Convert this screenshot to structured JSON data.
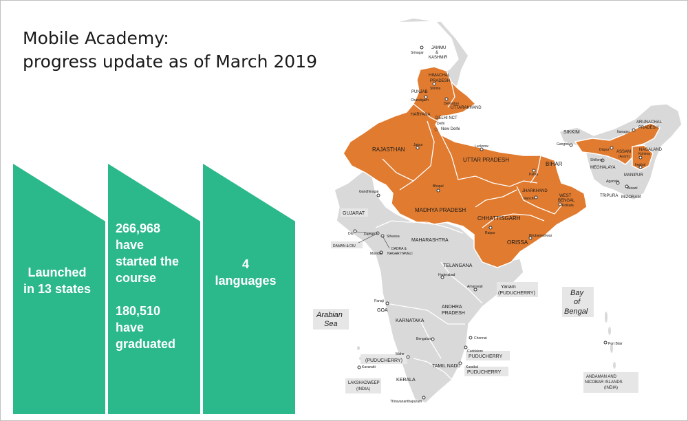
{
  "title": {
    "line1": "Mobile Academy:",
    "line2": "progress update as of March 2019"
  },
  "panels": {
    "launched_line1": "Launched",
    "launched_line2": "in 13 states",
    "started_count": "266,968",
    "started_line2": "have",
    "started_line3": "started the",
    "started_line4": "course",
    "graduated_count": "180,510",
    "graduated_line2": "have",
    "graduated_line3": "graduated",
    "languages_count": "4",
    "languages_label": "languages"
  },
  "colors": {
    "chevron": "#2bb88b",
    "launched_state": "#e07b30",
    "other_state": "#d9d9d9"
  },
  "map": {
    "states_launched": {
      "himachal_line1": "HIMACHAL",
      "himachal_line2": "PRADESH",
      "uttarakhand": "UTTARAKHAND",
      "delhi": "DELHI NCT",
      "rajasthan": "RAJASTHAN",
      "uttar_pradesh": "UTTAR PRADESH",
      "bihar": "BIHAR",
      "jharkhand": "JHARKHAND",
      "west_bengal_line1": "WEST",
      "west_bengal_line2": "BENGAL",
      "madhya_pradesh": "MADHYA PRADESH",
      "chhattisgarh": "CHHATTISGARH",
      "orissa": "ORISSA",
      "assam": "ASSAM"
    },
    "states_other": {
      "jammu_line1": "JAMMU",
      "jammu_line2": "&",
      "jammu_line3": "KASHMIR",
      "punjab": "PUNJAB",
      "haryana": "HARYANA",
      "gujarat": "GUJARAT",
      "maharashtra": "MAHARASHTRA",
      "telangana": "TELANGANA",
      "andhra_line1": "ANDHRA",
      "andhra_line2": "PRADESH",
      "karnataka": "KARNATAKA",
      "goa": "GOA",
      "kerala": "KERALA",
      "tamil_nadu": "TAMIL NADU",
      "sikkim": "SIKKIM",
      "arunachal_line1": "ARUNACHAL",
      "arunachal_line2": "PRADESH",
      "nagaland": "NAGALAND",
      "meghalaya": "MEGHALAYA",
      "manipur": "MANIPUR",
      "tripura": "TRIPURA",
      "mizoram": "MIZORAM",
      "daman_diu": "DAMAN & DIU",
      "dadra_line1": "DADRA &",
      "dadra_line2": "NAGAR HAVELI",
      "lakshadweep_line1": "LAKSHADWEEP",
      "lakshadweep_line2": "(INDIA)",
      "andaman_line1": "ANDAMAN AND",
      "andaman_line2": "NICOBAR ISLANDS",
      "andaman_line3": "(INDIA)",
      "yanam_line1": "Yanam",
      "yanam_line2": "(PUDUCHERRY)",
      "puducherry_mahe": "(PUDUCHERRY)",
      "puducherry_cuddalore": "PUDUCHERRY",
      "puducherry_karaikal": "PUDUCHERRY"
    },
    "water": {
      "arabian_line1": "Arabian",
      "arabian_line2": "Sea",
      "bay_line1": "Bay",
      "bay_line2": "of",
      "bay_line3": "Bengal"
    },
    "cities": {
      "srinagar": "Srinagar",
      "shimla": "Shimla",
      "chandigarh": "Chandigarh",
      "dehradun": "Dehradun",
      "new_delhi": "New Delhi",
      "delhi": "Delhi",
      "jaipur": "Jaipur",
      "lucknow": "Lucknow",
      "patna": "Patna",
      "ranchi": "Ranchi",
      "kolkata": "Kolkata",
      "bhopal": "Bhopal",
      "raipur": "Raipur",
      "bhubaneshwar": "Bhubaneshwar",
      "gandhinagar": "Gandhinagar",
      "diu": "Diu",
      "daman": "Daman",
      "silvassa": "Silvassa",
      "mumbai": "Mumbai",
      "hyderabad": "Hyderabad",
      "amaravati": "Amaravati",
      "panaji": "Panaji",
      "bengaluru": "Bengaluru",
      "chennai": "Chennai",
      "cuddalore": "Cuddalore",
      "karaikal": "Karaikal",
      "mahe": "Mahe",
      "kavaratti": "Kavaratti",
      "thiruvananthapuram": "Thiruvananthapuram",
      "gangtok": "Gangtok",
      "itanagar": "Itanagar",
      "dispur": "Dispur",
      "kohima": "Kohima",
      "shillong": "Shillong",
      "imphal": "Imphal",
      "agartala": "Agartala",
      "aizawl": "Aizawl",
      "assam_alt": "(Asom)",
      "port_blair": "Port Blair"
    }
  }
}
